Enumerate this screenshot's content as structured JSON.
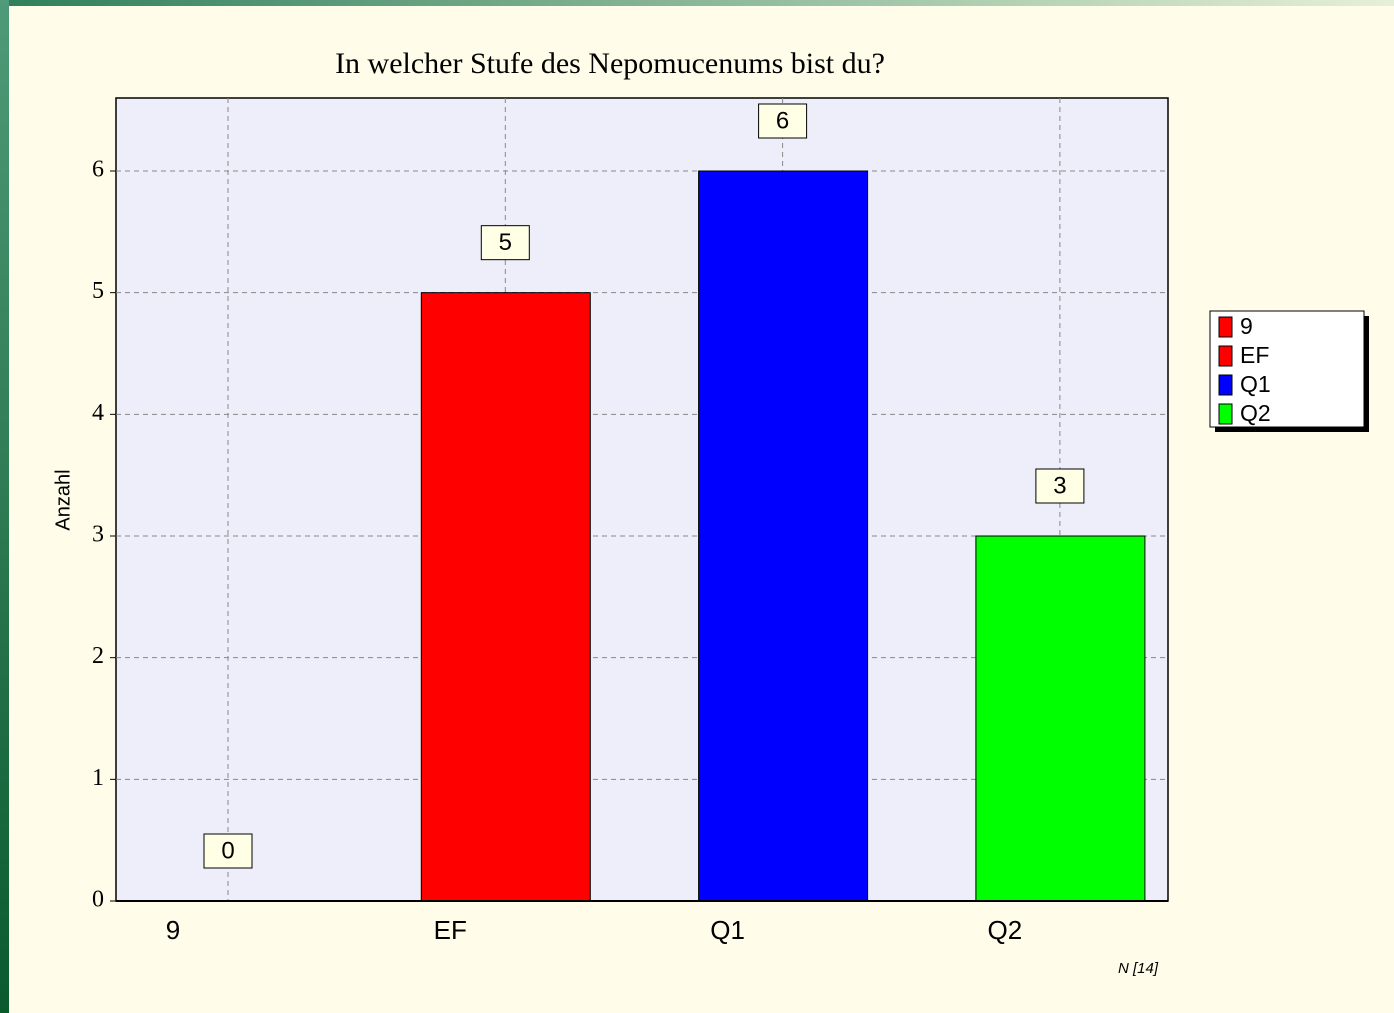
{
  "chart_data": {
    "type": "bar",
    "title": "In welcher Stufe des Nepomucenums bist du?",
    "y_label": "Anzahl",
    "footnote": "N [14]",
    "categories": [
      "9",
      "EF",
      "Q1",
      "Q2"
    ],
    "values": [
      0,
      5,
      6,
      3
    ],
    "colors": [
      "#ff0000",
      "#ff0000",
      "#0000ff",
      "#00ff00"
    ],
    "ylim": [
      0,
      6.6
    ],
    "yticks": [
      0,
      1,
      2,
      3,
      4,
      5,
      6
    ],
    "grid": true,
    "legend": "right"
  }
}
